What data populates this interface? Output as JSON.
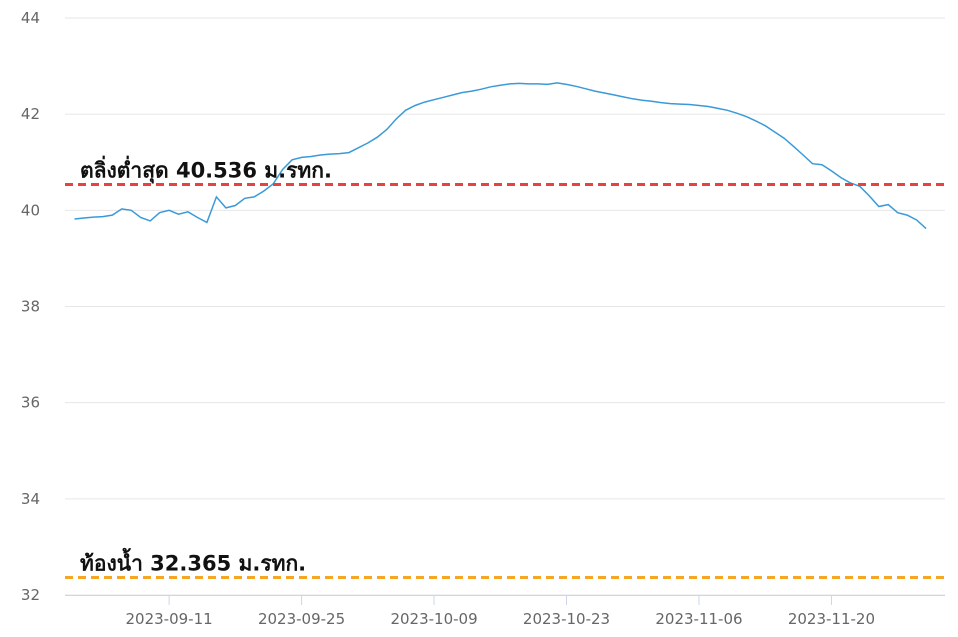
{
  "chart_data": {
    "type": "line",
    "x": [
      "2023-09-01",
      "2023-09-02",
      "2023-09-03",
      "2023-09-04",
      "2023-09-05",
      "2023-09-06",
      "2023-09-07",
      "2023-09-08",
      "2023-09-09",
      "2023-09-10",
      "2023-09-11",
      "2023-09-12",
      "2023-09-13",
      "2023-09-14",
      "2023-09-15",
      "2023-09-16",
      "2023-09-17",
      "2023-09-18",
      "2023-09-19",
      "2023-09-20",
      "2023-09-21",
      "2023-09-22",
      "2023-09-23",
      "2023-09-24",
      "2023-09-25",
      "2023-09-26",
      "2023-09-27",
      "2023-09-28",
      "2023-09-29",
      "2023-09-30",
      "2023-10-01",
      "2023-10-02",
      "2023-10-03",
      "2023-10-04",
      "2023-10-05",
      "2023-10-06",
      "2023-10-07",
      "2023-10-08",
      "2023-10-09",
      "2023-10-10",
      "2023-10-11",
      "2023-10-12",
      "2023-10-13",
      "2023-10-14",
      "2023-10-15",
      "2023-10-16",
      "2023-10-17",
      "2023-10-18",
      "2023-10-19",
      "2023-10-20",
      "2023-10-21",
      "2023-10-22",
      "2023-10-23",
      "2023-10-24",
      "2023-10-25",
      "2023-10-26",
      "2023-10-27",
      "2023-10-28",
      "2023-10-29",
      "2023-10-30",
      "2023-10-31",
      "2023-11-01",
      "2023-11-02",
      "2023-11-03",
      "2023-11-04",
      "2023-11-05",
      "2023-11-06",
      "2023-11-07",
      "2023-11-08",
      "2023-11-09",
      "2023-11-10",
      "2023-11-11",
      "2023-11-12",
      "2023-11-13",
      "2023-11-14",
      "2023-11-15",
      "2023-11-16",
      "2023-11-17",
      "2023-11-18",
      "2023-11-19",
      "2023-11-20",
      "2023-11-21",
      "2023-11-22",
      "2023-11-23",
      "2023-11-24",
      "2023-11-25",
      "2023-11-26",
      "2023-11-27",
      "2023-11-28",
      "2023-11-29",
      "2023-11-30"
    ],
    "series": [
      {
        "color": "#3a9ad9",
        "values": [
          39.82,
          39.84,
          39.86,
          39.87,
          39.9,
          40.03,
          40.0,
          39.85,
          39.78,
          39.95,
          40.0,
          39.92,
          39.97,
          39.85,
          39.75,
          40.28,
          40.05,
          40.1,
          40.25,
          40.28,
          40.4,
          40.55,
          40.85,
          41.05,
          41.1,
          41.12,
          41.15,
          41.17,
          41.18,
          41.2,
          41.3,
          41.4,
          41.52,
          41.68,
          41.9,
          42.08,
          42.18,
          42.25,
          42.3,
          42.35,
          42.4,
          42.45,
          42.48,
          42.52,
          42.57,
          42.6,
          42.63,
          42.64,
          42.63,
          42.63,
          42.62,
          42.65,
          42.62,
          42.58,
          42.53,
          42.48,
          42.44,
          42.4,
          42.36,
          42.32,
          42.29,
          42.27,
          42.24,
          42.22,
          42.21,
          42.2,
          42.18,
          42.16,
          42.12,
          42.08,
          42.02,
          41.95,
          41.86,
          41.76,
          41.63,
          41.5,
          41.33,
          41.15,
          40.97,
          40.95,
          40.82,
          40.68,
          40.57,
          40.5,
          40.3,
          40.08,
          40.12,
          39.95,
          39.9,
          39.8,
          39.62
        ]
      }
    ],
    "xlim": [
      "2023-08-31",
      "2023-12-02"
    ],
    "xticks": [
      "2023-09-11",
      "2023-09-25",
      "2023-10-09",
      "2023-10-23",
      "2023-11-06",
      "2023-11-20"
    ],
    "ylim": [
      32,
      44
    ],
    "yticks": [
      32,
      34,
      36,
      38,
      40,
      42,
      44
    ],
    "grid": true,
    "annotations": [
      {
        "label": "ตลิ่งต่ำสุด 40.536 ม.รทก.",
        "value": 40.536,
        "color": "#e8413f"
      },
      {
        "label": "ท้องน้ำ 32.365 ม.รทก.",
        "value": 32.365,
        "color": "#f5a623"
      }
    ]
  }
}
